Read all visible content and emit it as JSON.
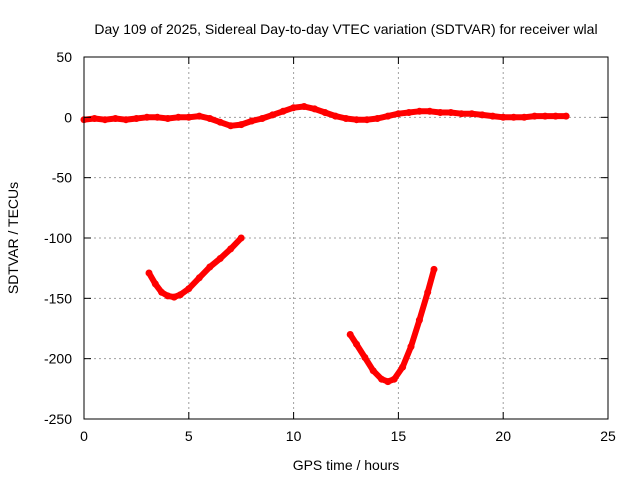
{
  "chart_data": {
    "type": "scatter",
    "title": "Day 109 of 2025, Sidereal Day-to-day VTEC variation (SDTVAR) for receiver wlal",
    "xlabel": "GPS time / hours",
    "ylabel": "SDTVAR / TECUs",
    "xlim": [
      0,
      25
    ],
    "ylim": [
      -250,
      50
    ],
    "xticks": [
      "0",
      "5",
      "10",
      "15",
      "20",
      "25"
    ],
    "yticks": [
      "50",
      "0",
      "-50",
      "-100",
      "-150",
      "-200",
      "-250"
    ],
    "grid": true,
    "legend": "none",
    "series": [
      {
        "color": "#ff0000",
        "segments": [
          {
            "x": [
              0.0,
              0.5,
              1.0,
              1.5,
              2.0,
              2.5,
              3.0,
              3.5,
              4.0,
              4.5,
              5.0,
              5.5,
              6.0,
              6.5,
              7.0,
              7.5,
              8.0,
              8.5,
              9.0,
              9.5,
              10.0,
              10.5,
              11.0,
              11.5,
              12.0,
              12.5,
              13.0,
              13.5,
              14.0,
              14.5,
              15.0,
              15.5,
              16.0,
              16.5,
              17.0,
              17.5,
              18.0,
              18.5,
              19.0,
              19.5,
              20.0,
              20.5,
              21.0,
              21.5,
              22.0,
              22.5,
              23.0
            ],
            "y": [
              -2,
              -1,
              -2,
              -1,
              -2,
              -1,
              0,
              0,
              -1,
              0,
              0,
              1,
              -1,
              -4,
              -7,
              -6,
              -3,
              -1,
              2,
              5,
              8,
              9,
              7,
              4,
              1,
              -1,
              -2,
              -2,
              -1,
              1,
              3,
              4,
              5,
              5,
              4,
              4,
              3,
              3,
              2,
              1,
              0,
              0,
              0,
              1,
              1,
              1,
              1
            ]
          },
          {
            "x": [
              3.1,
              3.4,
              3.7,
              4.0,
              4.3,
              4.6,
              5.0,
              5.5,
              6.0,
              6.5,
              7.0,
              7.5
            ],
            "y": [
              -129,
              -138,
              -145,
              -148,
              -149,
              -147,
              -142,
              -133,
              -124,
              -117,
              -109,
              -100
            ]
          },
          {
            "x": [
              12.7,
              13.0,
              13.4,
              13.8,
              14.2,
              14.5,
              14.8,
              15.2,
              15.6,
              16.0,
              16.4,
              16.7
            ],
            "y": [
              -180,
              -188,
              -199,
              -210,
              -217,
              -219,
              -217,
              -207,
              -190,
              -168,
              -145,
              -126
            ]
          }
        ]
      }
    ]
  }
}
